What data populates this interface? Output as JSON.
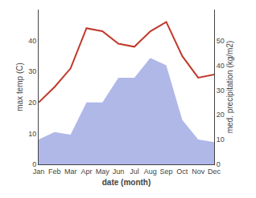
{
  "chart_data": {
    "type": "line",
    "xlabel": "date (month)",
    "ylabel": "max temp (C)",
    "y2label": "med. precipitation (kg/m2)",
    "categories": [
      "Jan",
      "Feb",
      "Mar",
      "Apr",
      "May",
      "Jun",
      "Jul",
      "Aug",
      "Sep",
      "Oct",
      "Nov",
      "Dec"
    ],
    "series": [
      {
        "type": "area",
        "axis": "y2",
        "color": "#b0b8e8",
        "values": [
          10,
          13,
          12,
          25,
          25,
          35,
          35,
          43,
          40,
          18,
          10,
          9
        ]
      },
      {
        "type": "line",
        "color": "#c0392b",
        "values": [
          20,
          25,
          31,
          44,
          43,
          39,
          38,
          43,
          46,
          35,
          28,
          29
        ]
      }
    ],
    "ylim": [
      0,
      50
    ],
    "yticks": [
      0,
      10,
      20,
      30,
      40
    ],
    "y2lim": [
      0,
      62.5
    ],
    "y2ticks": [
      0,
      10,
      20,
      30,
      40,
      50
    ],
    "grid": false
  }
}
